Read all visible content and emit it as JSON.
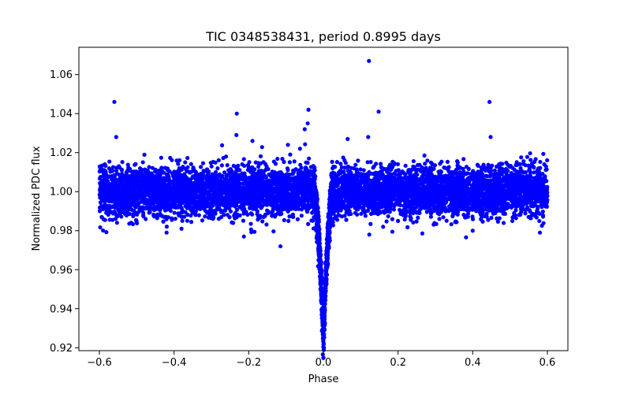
{
  "chart_data": {
    "type": "scatter",
    "title": "TIC 0348538431, period 0.8995 days",
    "xlabel": "Phase",
    "ylabel": "Normalized PDC flux",
    "xlim": [
      -0.655,
      0.655
    ],
    "ylim": [
      0.9185,
      1.074
    ],
    "x_ticks": [
      -0.6,
      -0.4,
      -0.2,
      0.0,
      0.2,
      0.4,
      0.6
    ],
    "x_tick_labels": [
      "−0.6",
      "−0.4",
      "−0.2",
      "0.0",
      "0.2",
      "0.4",
      "0.6"
    ],
    "y_ticks": [
      0.92,
      0.94,
      0.96,
      0.98,
      1.0,
      1.02,
      1.04,
      1.06
    ],
    "y_tick_labels": [
      "0.92",
      "0.94",
      "0.96",
      "0.98",
      "1.00",
      "1.02",
      "1.04",
      "1.06"
    ],
    "grid": false,
    "legend": "none",
    "series": [
      {
        "color": "#0000ff",
        "marker": "circle",
        "x_range": [
          -0.6,
          0.6
        ],
        "baseline_flux": 1.0,
        "scatter_band": [
          0.985,
          1.018
        ],
        "transit": {
          "center_phase": 0.0,
          "min_flux": 0.926,
          "half_width_phase": 0.025
        },
        "outliers": [
          {
            "x": 0.122,
            "y": 1.067
          },
          {
            "x": -0.56,
            "y": 1.046
          },
          {
            "x": 0.445,
            "y": 1.046
          },
          {
            "x": -0.04,
            "y": 1.042
          },
          {
            "x": 0.148,
            "y": 1.041
          },
          {
            "x": -0.232,
            "y": 1.04
          },
          {
            "x": -0.233,
            "y": 1.029
          },
          {
            "x": -0.042,
            "y": 1.035
          },
          {
            "x": -0.05,
            "y": 1.032
          },
          {
            "x": -0.555,
            "y": 1.028
          },
          {
            "x": 0.448,
            "y": 1.028
          },
          {
            "x": -0.19,
            "y": 1.026
          },
          {
            "x": 0.12,
            "y": 1.028
          },
          {
            "x": -0.095,
            "y": 1.024
          },
          {
            "x": 0.065,
            "y": 1.027
          },
          {
            "x": -0.115,
            "y": 0.972
          },
          {
            "x": 0.123,
            "y": 0.978
          },
          {
            "x": -0.213,
            "y": 0.977
          },
          {
            "x": -0.42,
            "y": 0.979
          },
          {
            "x": 0.58,
            "y": 0.979
          },
          {
            "x": 0.4,
            "y": 0.98
          },
          {
            "x": -0.38,
            "y": 0.981
          },
          {
            "x": 0.16,
            "y": 0.982
          }
        ]
      }
    ]
  }
}
